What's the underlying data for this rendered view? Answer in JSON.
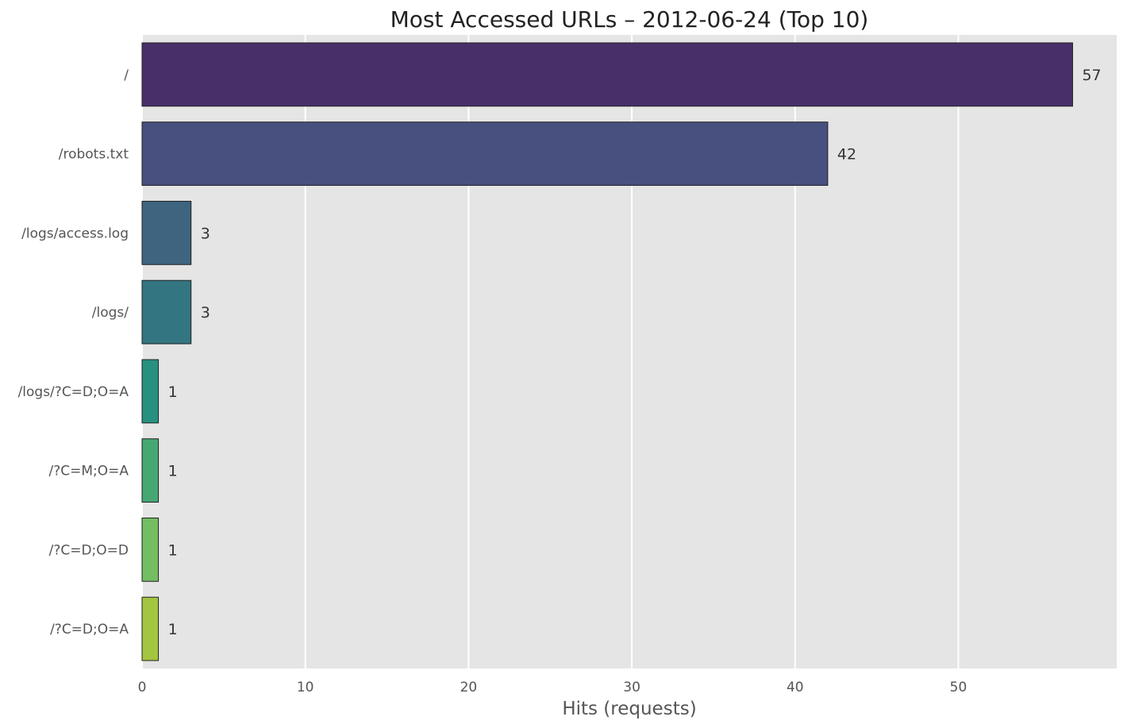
{
  "chart_data": {
    "type": "bar",
    "orientation": "horizontal",
    "title": "Most Accessed URLs – 2012-06-24 (Top 10)",
    "xlabel": "Hits (requests)",
    "ylabel": "",
    "xlim": [
      0,
      59.7
    ],
    "x_ticks": [
      0,
      10,
      20,
      30,
      40,
      50
    ],
    "grid": true,
    "categories": [
      "/",
      "/robots.txt",
      "/logs/access.log",
      "/logs/",
      "/logs/?C=D;O=A",
      "/?C=M;O=A",
      "/?C=D;O=D",
      "/?C=D;O=A"
    ],
    "values": [
      57,
      42,
      3,
      3,
      1,
      1,
      1,
      1
    ],
    "data_labels": [
      "57",
      "42",
      "3",
      "3",
      "1",
      "1",
      "1",
      "1"
    ],
    "colors": [
      "#482f6a",
      "#47507e",
      "#3e647f",
      "#337580",
      "#28907f",
      "#45a873",
      "#73bd62",
      "#a3c53f"
    ],
    "style": {
      "plot_background": "#e5e5e5",
      "grid_color": "#ffffff",
      "bar_edge_color": "#222222",
      "text_color": "#333333",
      "tick_color": "#555555"
    }
  }
}
